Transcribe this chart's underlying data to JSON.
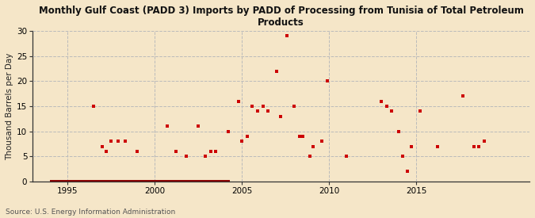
{
  "title": "Monthly Gulf Coast (PADD 3) Imports by PADD of Processing from Tunisia of Total Petroleum\nProducts",
  "ylabel": "Thousand Barrels per Day",
  "source": "Source: U.S. Energy Information Administration",
  "xlim": [
    1993.0,
    2021.5
  ],
  "ylim": [
    0,
    30
  ],
  "yticks": [
    0,
    5,
    10,
    15,
    20,
    25,
    30
  ],
  "xticks": [
    1995,
    2000,
    2005,
    2010,
    2015
  ],
  "background_color": "#f5e6c8",
  "plot_bg_color": "#f5e6c8",
  "grid_color": "#bbbbbb",
  "marker_color": "#cc0000",
  "zero_line_color": "#880000",
  "spine_color": "#333333",
  "data_points": [
    [
      1996.5,
      15
    ],
    [
      1997.0,
      7
    ],
    [
      1997.2,
      6
    ],
    [
      1997.5,
      8
    ],
    [
      1997.9,
      8
    ],
    [
      1998.3,
      8
    ],
    [
      1999.0,
      6
    ],
    [
      2000.7,
      11
    ],
    [
      2001.2,
      6
    ],
    [
      2001.8,
      5
    ],
    [
      2002.5,
      11
    ],
    [
      2002.9,
      5
    ],
    [
      2003.2,
      6
    ],
    [
      2003.5,
      6
    ],
    [
      2004.2,
      10
    ],
    [
      2004.8,
      16
    ],
    [
      2005.0,
      8
    ],
    [
      2005.3,
      9
    ],
    [
      2005.6,
      15
    ],
    [
      2005.9,
      14
    ],
    [
      2006.2,
      15
    ],
    [
      2006.5,
      14
    ],
    [
      2007.0,
      22
    ],
    [
      2007.2,
      13
    ],
    [
      2007.6,
      29
    ],
    [
      2008.0,
      15
    ],
    [
      2008.3,
      9
    ],
    [
      2008.5,
      9
    ],
    [
      2008.9,
      5
    ],
    [
      2009.1,
      7
    ],
    [
      2009.6,
      8
    ],
    [
      2009.9,
      20
    ],
    [
      2011.0,
      5
    ],
    [
      2013.0,
      16
    ],
    [
      2013.3,
      15
    ],
    [
      2013.6,
      14
    ],
    [
      2014.0,
      10
    ],
    [
      2014.2,
      5
    ],
    [
      2014.5,
      2
    ],
    [
      2014.7,
      7
    ],
    [
      2015.2,
      14
    ],
    [
      2016.2,
      7
    ],
    [
      2017.7,
      17
    ],
    [
      2018.3,
      7
    ],
    [
      2018.6,
      7
    ],
    [
      2018.9,
      8
    ]
  ],
  "zero_line_x": [
    1994.0,
    2004.3
  ]
}
